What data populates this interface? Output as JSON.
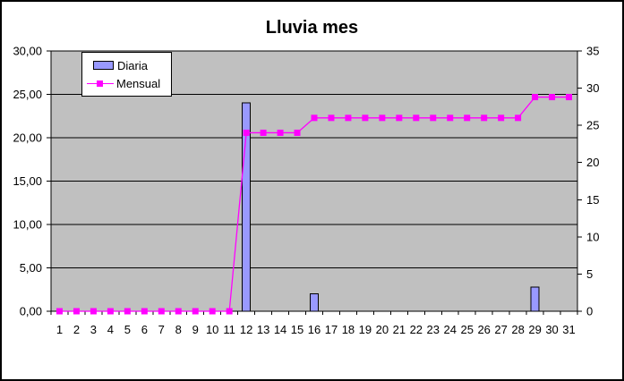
{
  "window": {
    "background": "#FFFFFF",
    "border_color": "#000000"
  },
  "chart_data": {
    "type": "combo",
    "title": "Lluvia mes",
    "plot_bg": "#C0C0C0",
    "grid_color": "#000000",
    "axis_color": "#000000",
    "text_color": "#000000",
    "categories": [
      "1",
      "2",
      "3",
      "4",
      "5",
      "6",
      "7",
      "8",
      "9",
      "10",
      "11",
      "12",
      "13",
      "14",
      "15",
      "16",
      "17",
      "18",
      "19",
      "20",
      "21",
      "22",
      "23",
      "24",
      "25",
      "26",
      "27",
      "28",
      "29",
      "30",
      "31"
    ],
    "series": [
      {
        "name": "Diaria",
        "type": "bar",
        "axis": "left",
        "color": "#9999FF",
        "border_color": "#000000",
        "values": [
          0,
          0,
          0,
          0,
          0,
          0,
          0,
          0,
          0,
          0,
          0,
          24,
          0,
          0,
          0,
          2,
          0,
          0,
          0,
          0,
          0,
          0,
          0,
          0,
          0,
          0,
          0,
          0,
          2.8,
          0,
          0
        ]
      },
      {
        "name": "Mensual",
        "type": "line",
        "axis": "right",
        "color": "#FF00FF",
        "marker": "square",
        "values": [
          0,
          0,
          0,
          0,
          0,
          0,
          0,
          0,
          0,
          0,
          0,
          24,
          24,
          24,
          24,
          26,
          26,
          26,
          26,
          26,
          26,
          26,
          26,
          26,
          26,
          26,
          26,
          26,
          28.8,
          28.8,
          28.8
        ]
      }
    ],
    "left_axis": {
      "min": 0,
      "max": 30,
      "step": 5,
      "tick_labels": [
        "30,00",
        "25,00",
        "20,00",
        "15,00",
        "10,00",
        "5,00",
        "0,00"
      ]
    },
    "right_axis": {
      "min": 0,
      "max": 35,
      "step": 5,
      "tick_labels": [
        "35",
        "30",
        "25",
        "20",
        "15",
        "10",
        "5",
        "0"
      ]
    },
    "legend": {
      "position": "top-left",
      "bg": "#FFFFFF",
      "border": "#000000"
    }
  }
}
